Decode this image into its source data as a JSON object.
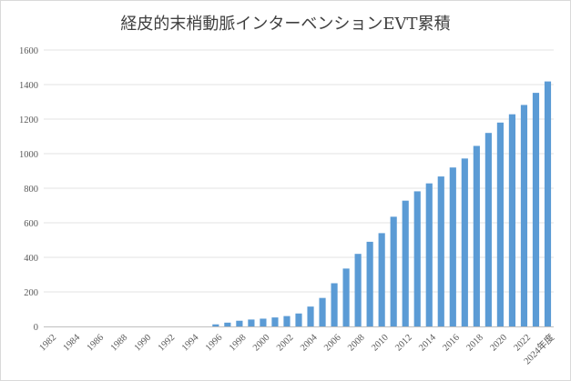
{
  "chart_data": {
    "type": "bar",
    "title": "経皮的末梢動脈インターベンションEVT累積",
    "xlabel": "",
    "ylabel": "",
    "ylim": [
      0,
      1600
    ],
    "yticks": [
      0,
      200,
      400,
      600,
      800,
      1000,
      1200,
      1400,
      1600
    ],
    "grid": true,
    "legend": "none",
    "bar_color": "#5b9bd5",
    "categories": [
      "1982",
      "1983",
      "1984",
      "1985",
      "1986",
      "1987",
      "1988",
      "1989",
      "1990",
      "1991",
      "1992",
      "1993",
      "1994",
      "1995",
      "1996",
      "1997",
      "1998",
      "1999",
      "2000",
      "2001",
      "2002",
      "2003",
      "2004",
      "2005",
      "2006",
      "2007",
      "2008",
      "2009",
      "2010",
      "2011",
      "2012",
      "2013",
      "2014",
      "2015",
      "2016",
      "2017",
      "2018",
      "2019",
      "2020",
      "2021",
      "2022",
      "2023",
      "2024年度"
    ],
    "xtick_labels": [
      "1982",
      "",
      "1984",
      "",
      "1986",
      "",
      "1988",
      "",
      "1990",
      "",
      "1992",
      "",
      "1994",
      "",
      "1996",
      "",
      "1998",
      "",
      "2000",
      "",
      "2002",
      "",
      "2004",
      "",
      "2006",
      "",
      "2008",
      "",
      "2010",
      "",
      "2012",
      "",
      "2014",
      "",
      "2016",
      "",
      "2018",
      "",
      "2020",
      "",
      "2022",
      "",
      "2024年度"
    ],
    "values": [
      0,
      0,
      0,
      0,
      0,
      0,
      0,
      0,
      0,
      0,
      0,
      0,
      0,
      0,
      12,
      22,
      33,
      40,
      45,
      52,
      60,
      75,
      115,
      165,
      250,
      335,
      420,
      490,
      540,
      635,
      728,
      782,
      828,
      868,
      920,
      972,
      1045,
      1120,
      1180,
      1228,
      1282,
      1352,
      1418
    ]
  }
}
